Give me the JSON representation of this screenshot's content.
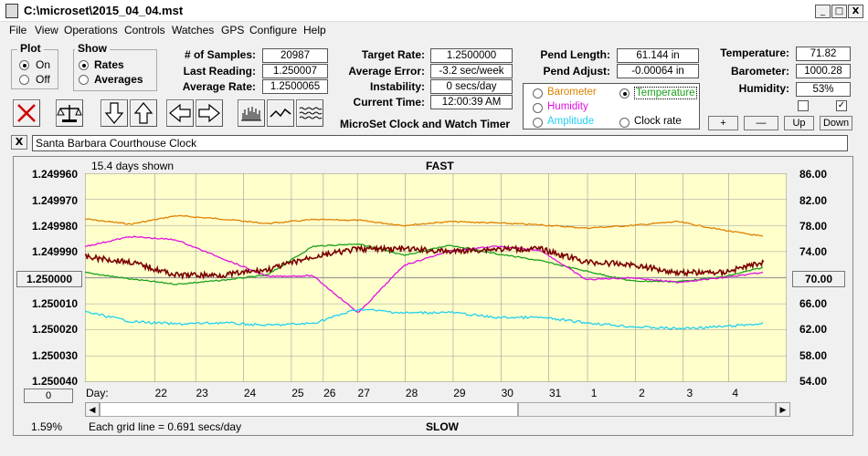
{
  "window": {
    "title": "C:\\microset\\2015_04_04.mst"
  },
  "window_buttons": {
    "minimize": "_",
    "maximize": "□",
    "close": "X"
  },
  "menu": [
    "File",
    "View",
    "Operations",
    "Controls",
    "Watches",
    "GPS",
    "Configure",
    "Help"
  ],
  "plot_group": {
    "title": "Plot",
    "on": "On",
    "off": "Off",
    "selected": "On"
  },
  "show_group": {
    "title": "Show",
    "rates": "Rates",
    "averages": "Averages",
    "selected": "Rates"
  },
  "stats": {
    "samples_label": "# of Samples:",
    "samples": "20987",
    "last_label": "Last Reading:",
    "last": "1.250007",
    "avg_rate_label": "Average Rate:",
    "avg_rate": "1.2500065",
    "target_label": "Target Rate:",
    "target": "1.2500000",
    "avg_err_label": "Average Error:",
    "avg_err": "-3.2 sec/week",
    "instab_label": "Instability:",
    "instab": "0 secs/day",
    "time_label": "Current Time:",
    "time": "12:00:39 AM",
    "pend_len_label": "Pend Length:",
    "pend_len": "61.144 in",
    "pend_adj_label": "Pend Adjust:",
    "pend_adj": "-0.00064 in",
    "temp_label": "Temperature:",
    "temp": "71.82",
    "baro_label": "Barometer:",
    "baro": "1000.28",
    "hum_label": "Humidity:",
    "hum": "53%"
  },
  "app_name": "MicroSet Clock and Watch Timer",
  "sensor_options": {
    "barometer": "Barometer",
    "temperature": "Temperature",
    "humidity": "Humidity",
    "amplitude": "Amplitude",
    "clock_rate": "Clock rate",
    "selected": "Temperature"
  },
  "adjust_buttons": {
    "plus": "+",
    "minus": "—",
    "up": "Up",
    "down": "Down"
  },
  "checkbox_checked_glyph": "✓",
  "description": {
    "close_glyph": "X",
    "text": "Santa Barbara Courthouse Clock"
  },
  "chart_info": {
    "days_shown": "15.4 days shown",
    "fast": "FAST",
    "slow": "SLOW",
    "grid_note": "Each grid line = 0.691 secs/day",
    "percent": "1.59%",
    "day_label": "Day:",
    "left_button": "1.250000",
    "right_button": "70.00",
    "zero_button": "0"
  },
  "colors": {
    "plot_bg": "#ffffcc",
    "barometer": "#e08000",
    "temperature": "#1aa01a",
    "humidity": "#e010e0",
    "amplitude": "#20d0f0",
    "rate": "#7a0000",
    "grid": "#9a9a9a"
  },
  "chart_data": {
    "type": "line",
    "left_axis_ticks": [
      "1.249960",
      "1.249970",
      "1.249980",
      "1.249990",
      "1.250000",
      "1.250010",
      "1.250020",
      "1.250030",
      "1.250040"
    ],
    "right_axis_ticks": [
      "86.00",
      "82.00",
      "78.00",
      "74.00",
      "70.00",
      "66.00",
      "62.00",
      "58.00",
      "54.00"
    ],
    "x_ticks": [
      "22",
      "23",
      "24",
      "25",
      "26",
      "27",
      "28",
      "29",
      "30",
      "31",
      "1",
      "2",
      "3",
      "4"
    ],
    "left_ylim": [
      1.24996,
      1.25004
    ],
    "right_ylim": [
      54,
      86
    ],
    "x_range_days": 15.4,
    "tick_positions_days": [
      1.53,
      2.43,
      3.48,
      4.53,
      5.23,
      5.98,
      7.03,
      8.08,
      9.13,
      10.18,
      11.03,
      12.08,
      13.13,
      14.13
    ],
    "series": [
      {
        "name": "Barometer",
        "axis": "right",
        "x": [
          0,
          1,
          2,
          3,
          4,
          5,
          6,
          7,
          8,
          9,
          10,
          11,
          12,
          13,
          14,
          14.9
        ],
        "values": [
          79.0,
          78.2,
          79.5,
          79.0,
          78.3,
          78.9,
          78.8,
          78.0,
          78.6,
          78.4,
          78.1,
          77.6,
          78.0,
          78.6,
          77.3,
          76.3
        ]
      },
      {
        "name": "Temperature",
        "axis": "right",
        "x": [
          0,
          1,
          2,
          3,
          4,
          5,
          6,
          7,
          8,
          9,
          10,
          11,
          12,
          13,
          14,
          14.9
        ],
        "values": [
          70.8,
          69.8,
          69.0,
          69.6,
          70.4,
          74.8,
          75.2,
          73.4,
          75.0,
          73.7,
          72.6,
          71.0,
          69.5,
          69.4,
          70.1,
          71.6
        ]
      },
      {
        "name": "Humidity",
        "axis": "right",
        "x": [
          0,
          1,
          2,
          3,
          4,
          5,
          6,
          7,
          8,
          9,
          10,
          11,
          12,
          13,
          14,
          14.9
        ],
        "values": [
          74.8,
          76.3,
          75.8,
          73.0,
          70.2,
          70.3,
          64.6,
          71.9,
          74.1,
          74.8,
          74.2,
          69.7,
          70.0,
          69.3,
          70.0,
          70.8
        ]
      },
      {
        "name": "Amplitude",
        "axis": "right",
        "x": [
          0,
          1,
          2,
          3,
          4,
          5,
          6,
          7,
          8,
          9,
          10,
          11,
          12,
          13,
          14,
          14.9
        ],
        "values": [
          64.8,
          63.3,
          62.9,
          63.1,
          62.7,
          63.0,
          65.2,
          64.6,
          64.7,
          63.9,
          63.9,
          63.1,
          62.5,
          62.2,
          62.5,
          63.0
        ]
      },
      {
        "name": "Clock rate",
        "axis": "left",
        "x": [
          0,
          1,
          2,
          3,
          4,
          5,
          6,
          7,
          8,
          9,
          10,
          11,
          12,
          13,
          14,
          14.9
        ],
        "values": [
          1.250008,
          1.250006,
          1.250001,
          1.250001,
          1.250003,
          1.250008,
          1.250011,
          1.250011,
          1.25001,
          1.250011,
          1.250011,
          1.250006,
          1.250005,
          1.250002,
          1.250002,
          1.250006
        ]
      }
    ]
  }
}
